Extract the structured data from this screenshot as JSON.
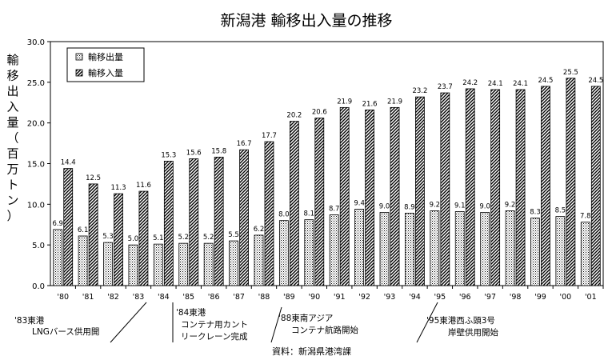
{
  "chart_data": {
    "type": "bar",
    "title": "新潟港 輸移出入量の推移",
    "ylabel": "輸移出入量（百万トン）",
    "ylabel_chars": [
      "輸",
      "移",
      "出",
      "入",
      "量",
      "（",
      "百",
      "万",
      "ト",
      "ン",
      "）"
    ],
    "ylim": [
      0,
      30
    ],
    "yticks": [
      "0.0",
      "5.0",
      "10.0",
      "15.0",
      "20.0",
      "25.0",
      "30.0"
    ],
    "categories": [
      "'80",
      "'81",
      "'82",
      "'83",
      "'84",
      "'85",
      "'86",
      "'87",
      "'88",
      "'89",
      "'90",
      "'91",
      "'92",
      "'93",
      "'94",
      "'95",
      "'96",
      "'97",
      "'98",
      "'99",
      "'00",
      "'01"
    ],
    "series": [
      {
        "name": "輸移出量",
        "pattern": "dots",
        "values": [
          6.9,
          6.1,
          5.3,
          5.0,
          5.1,
          5.2,
          5.2,
          5.5,
          6.2,
          8.0,
          8.1,
          8.7,
          9.4,
          9.0,
          8.9,
          9.2,
          9.1,
          9.0,
          9.2,
          8.3,
          8.5,
          7.8
        ],
        "labels": [
          "6.9",
          "6.1",
          "5.3",
          "5.0",
          "5.1",
          "5.2",
          "5.2",
          "5.5",
          "6.2",
          "8.0",
          "8.1",
          "8.7",
          "9.4",
          "9.0",
          "8.9",
          "9.2",
          "9.1",
          "9.0",
          "9.2",
          "8.3",
          "8.5",
          "7.8"
        ]
      },
      {
        "name": "輸移入量",
        "pattern": "hatch",
        "values": [
          14.4,
          12.5,
          11.3,
          11.6,
          15.3,
          15.6,
          15.8,
          16.7,
          17.7,
          20.2,
          20.6,
          21.9,
          21.6,
          21.9,
          23.2,
          23.7,
          24.2,
          24.1,
          24.1,
          24.5,
          25.5,
          24.5
        ],
        "labels": [
          "14.4",
          "12.5",
          "11.3",
          "11.6",
          "15.3",
          "15.6",
          "15.8",
          "16.7",
          "17.7",
          "20.2",
          "20.6",
          "21.9",
          "21.6",
          "21.9",
          "23.2",
          "23.7",
          "24.2",
          "24.1",
          "24.1",
          "24.5",
          "25.5",
          "24.5"
        ]
      }
    ],
    "legend": "top-left",
    "grid": false,
    "annotations": [
      {
        "lines": [
          "'83東港",
          "LNGバース供用開"
        ]
      },
      {
        "lines": [
          "'84東港",
          "コンテナ用カント",
          "リークレーン完成"
        ]
      },
      {
        "lines": [
          "'88東南アジア",
          "コンテナ航路開始"
        ]
      },
      {
        "lines": [
          "'95東港西ふ頭3号",
          "岸壁供用開始"
        ]
      }
    ],
    "source": "資料：新潟県港湾課"
  }
}
